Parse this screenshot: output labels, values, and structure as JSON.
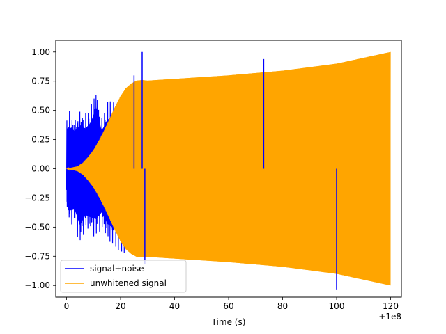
{
  "chart_data": {
    "type": "line",
    "title": "",
    "xlabel": "Time (s)",
    "ylabel": "",
    "x_offset_label": "+1e8",
    "xlim": [
      -4,
      124
    ],
    "ylim": [
      -1.1,
      1.1
    ],
    "x_ticks": [
      0,
      20,
      40,
      60,
      80,
      100,
      120
    ],
    "x_tick_labels": [
      "0",
      "20",
      "40",
      "60",
      "80",
      "100",
      "120"
    ],
    "y_ticks": [
      1.0,
      0.75,
      0.5,
      0.25,
      0.0,
      -0.25,
      -0.5,
      -0.75,
      -1.0
    ],
    "y_tick_labels": [
      "1.00",
      "0.75",
      "0.50",
      "0.25",
      "0.00",
      "−0.25",
      "−0.50",
      "−0.75",
      "−1.00"
    ],
    "grid": false,
    "legend_position": "lower-left",
    "series": [
      {
        "name": "signal+noise",
        "color": "#0000ff",
        "envelope": {
          "x": [
            0,
            1,
            3,
            5,
            7,
            9,
            11,
            13,
            15,
            17,
            18,
            20,
            22,
            24,
            26,
            27
          ],
          "y_max": [
            0.47,
            0.5,
            0.45,
            0.52,
            0.48,
            0.55,
            0.74,
            0.45,
            0.58,
            0.62,
            0.6,
            0.66,
            0.7,
            0.74,
            0.76,
            0.76
          ],
          "y_min": [
            -0.33,
            -0.5,
            -0.48,
            -0.68,
            -0.55,
            -0.58,
            -0.6,
            -0.52,
            -0.65,
            -0.7,
            -0.68,
            -0.75,
            -0.76,
            -0.77,
            -0.77,
            -0.76
          ]
        },
        "spikes": [
          {
            "x": 28,
            "y": 1.0
          },
          {
            "x": 29,
            "y": -0.82
          },
          {
            "x": 25,
            "y": 0.8
          },
          {
            "x": 73,
            "y": 0.94
          },
          {
            "x": 100,
            "y": -1.04
          }
        ]
      },
      {
        "name": "unwhitened signal",
        "color": "#ffa500",
        "envelope": {
          "x": [
            0,
            2,
            4,
            6,
            8,
            10,
            12,
            14,
            16,
            18,
            20,
            22,
            24,
            26,
            28,
            30,
            40,
            60,
            80,
            100,
            110,
            118,
            120
          ],
          "y_max": [
            0.0,
            0.01,
            0.02,
            0.05,
            0.1,
            0.16,
            0.24,
            0.33,
            0.43,
            0.53,
            0.62,
            0.69,
            0.73,
            0.755,
            0.76,
            0.755,
            0.77,
            0.8,
            0.84,
            0.9,
            0.95,
            0.99,
            1.0
          ],
          "y_min": [
            0.0,
            -0.01,
            -0.02,
            -0.05,
            -0.1,
            -0.16,
            -0.24,
            -0.33,
            -0.43,
            -0.53,
            -0.62,
            -0.69,
            -0.73,
            -0.755,
            -0.76,
            -0.755,
            -0.77,
            -0.8,
            -0.84,
            -0.9,
            -0.95,
            -0.99,
            -1.0
          ]
        }
      }
    ]
  }
}
